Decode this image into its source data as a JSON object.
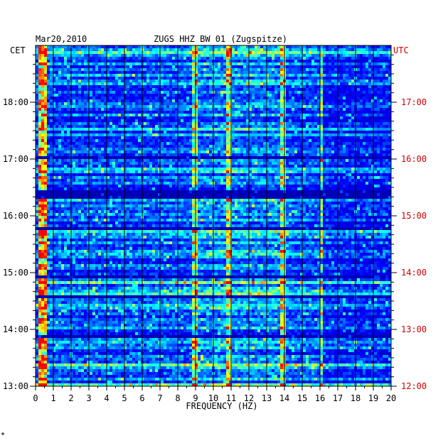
{
  "chart_data": {
    "type": "heatmap",
    "date": "Mar20,2010",
    "station": "ZUGS HHZ BW 01 (Zugspitze)",
    "left_axis_title": "CET",
    "right_axis_title": "UTC",
    "xlabel": "FREQUENCY (HZ)",
    "x_ticks": [
      "0",
      "1",
      "2",
      "3",
      "4",
      "5",
      "6",
      "7",
      "8",
      "9",
      "10",
      "11",
      "12",
      "13",
      "14",
      "15",
      "16",
      "17",
      "18",
      "19",
      "20"
    ],
    "xlim": [
      0,
      20
    ],
    "cet_ticks": [
      "18:00",
      "17:00",
      "16:00",
      "15:00",
      "14:00",
      "13:00"
    ],
    "utc_ticks": [
      "17:00",
      "16:00",
      "15:00",
      "14:00",
      "13:00",
      "12:00"
    ],
    "time_range_cet": [
      "13:00",
      "19:00"
    ],
    "grid": true,
    "colormap": [
      "#000080",
      "#0000ff",
      "#00ffff",
      "#ffff00",
      "#ff0000"
    ],
    "features": {
      "low_freq_band_hz": [
        0.1,
        0.6
      ],
      "persistent_lines_hz": [
        9.0,
        10.9,
        13.9,
        16.1
      ],
      "quiet_gap_cet": [
        "16:20",
        "16:28"
      ],
      "strong_row_cet": [
        "13:21",
        "13:23"
      ]
    }
  }
}
